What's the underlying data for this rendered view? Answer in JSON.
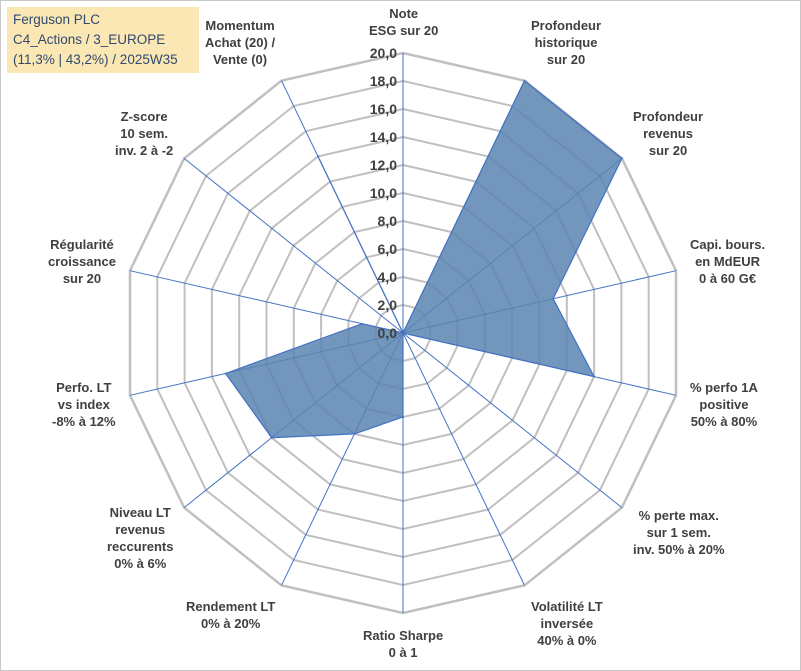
{
  "info_box": {
    "line1": "Ferguson PLC",
    "line2": "C4_Actions / 3_EUROPE",
    "line3": "(11,3% | 43,2%) / 2025W35"
  },
  "chart_data": {
    "type": "radar",
    "title": "",
    "rlim": [
      0,
      20
    ],
    "tick_step": 2,
    "tick_labels": [
      "0,0",
      "2,0",
      "4,0",
      "6,0",
      "8,0",
      "10,0",
      "12,0",
      "14,0",
      "16,0",
      "18,0",
      "20,0"
    ],
    "grid": true,
    "fill_color": "#5b84b1",
    "line_color": "#4472c4",
    "grid_color": "#c0c0c0",
    "categories": [
      {
        "lines": [
          "Note",
          "ESG sur 20"
        ]
      },
      {
        "lines": [
          "Profondeur",
          "historique",
          "sur 20"
        ]
      },
      {
        "lines": [
          "Profondeur",
          "revenus",
          "sur 20"
        ]
      },
      {
        "lines": [
          "Capi. bours.",
          "en MdEUR",
          "0 à 60 G€"
        ]
      },
      {
        "lines": [
          "% perfo 1A",
          "positive",
          "50% à 80%"
        ]
      },
      {
        "lines": [
          "% perte max.",
          "sur 1 sem.",
          "inv. 50% à 20%"
        ]
      },
      {
        "lines": [
          "Volatilité LT",
          "inversée",
          "40% à 0%"
        ]
      },
      {
        "lines": [
          "Ratio Sharpe",
          "0 à 1"
        ]
      },
      {
        "lines": [
          "Rendement LT",
          "0% à 20%"
        ]
      },
      {
        "lines": [
          "Niveau LT",
          "revenus",
          "reccurents",
          "0% à 6%"
        ]
      },
      {
        "lines": [
          "Perfo. LT",
          "vs index",
          "-8% à 12%"
        ]
      },
      {
        "lines": [
          "Régularité",
          "croissance",
          "sur 20"
        ]
      },
      {
        "lines": [
          "Z-score",
          "10 sem.",
          "inv. 2 à -2"
        ]
      },
      {
        "lines": [
          "Momentum",
          "Achat (20) /",
          "Vente (0)"
        ]
      }
    ],
    "values": [
      0,
      20,
      20,
      11,
      14,
      0,
      0,
      6,
      8,
      12,
      13,
      3,
      0,
      14
    ]
  }
}
